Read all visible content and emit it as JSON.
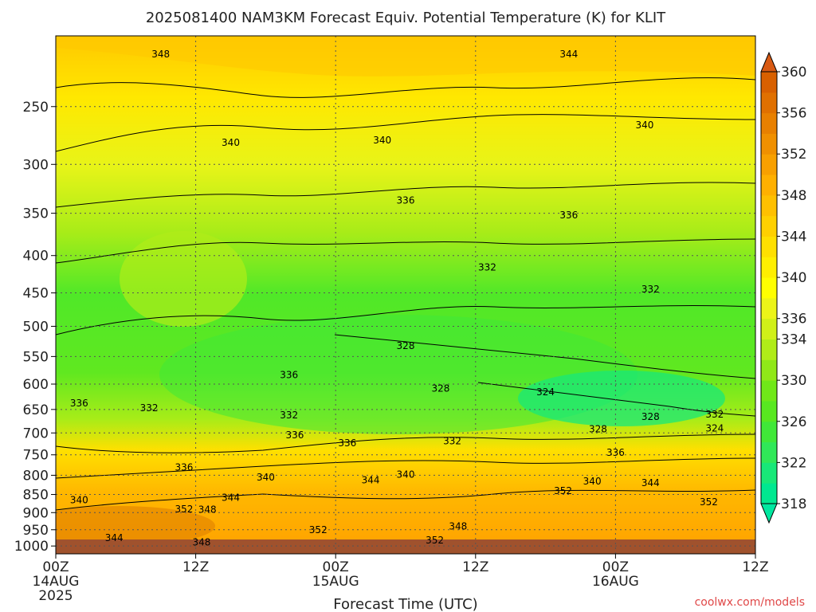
{
  "chart_data": {
    "type": "heatmap",
    "title": "2025081400 NAM3KM Forecast Equiv. Potential Temperature (K) for KLIT",
    "xlabel": "Forecast Time (UTC)",
    "ylabel": "",
    "y_axis": {
      "scale": "log",
      "inverted": true,
      "ylim": [
        1025,
        200
      ],
      "ticks": [
        250,
        300,
        350,
        400,
        450,
        500,
        550,
        600,
        650,
        700,
        750,
        800,
        850,
        900,
        950,
        1000
      ]
    },
    "x_axis": {
      "xlim_hours": [
        0,
        60
      ],
      "ticks": [
        {
          "hour": 0,
          "line1": "00Z",
          "line2": "14AUG",
          "line3": "2025"
        },
        {
          "hour": 12,
          "line1": "12Z",
          "line2": "",
          "line3": ""
        },
        {
          "hour": 24,
          "line1": "00Z",
          "line2": "15AUG",
          "line3": ""
        },
        {
          "hour": 36,
          "line1": "12Z",
          "line2": "",
          "line3": ""
        },
        {
          "hour": 48,
          "line1": "00Z",
          "line2": "16AUG",
          "line3": ""
        },
        {
          "hour": 60,
          "line1": "12Z",
          "line2": "",
          "line3": ""
        }
      ]
    },
    "grid": true,
    "colorbar": {
      "placement": "right",
      "levels": [
        318,
        320,
        322,
        324,
        326,
        328,
        330,
        332,
        334,
        336,
        338,
        340,
        342,
        344,
        346,
        348,
        350,
        352,
        354,
        356,
        358,
        360
      ],
      "labels": [
        318,
        322,
        326,
        330,
        334,
        336,
        340,
        344,
        348,
        352,
        356,
        360
      ],
      "colors": [
        "#00e890",
        "#18e878",
        "#30e858",
        "#40e838",
        "#58e820",
        "#70e818",
        "#90e818",
        "#b0ec18",
        "#d0f018",
        "#ecf418",
        "#ffff00",
        "#ffef00",
        "#ffe000",
        "#ffd000",
        "#ffc000",
        "#ffb000",
        "#f8a000",
        "#f09000",
        "#e88000",
        "#e07000",
        "#d86000"
      ]
    },
    "contour_labels": [
      {
        "text": "348",
        "hour": 9.0,
        "p": 212
      },
      {
        "text": "344",
        "hour": 44.0,
        "p": 212
      },
      {
        "text": "340",
        "hour": 15.0,
        "p": 280
      },
      {
        "text": "340",
        "hour": 28.0,
        "p": 278
      },
      {
        "text": "340",
        "hour": 50.5,
        "p": 265
      },
      {
        "text": "336",
        "hour": 30.0,
        "p": 336
      },
      {
        "text": "336",
        "hour": 44.0,
        "p": 352
      },
      {
        "text": "332",
        "hour": 37.0,
        "p": 415
      },
      {
        "text": "332",
        "hour": 51.0,
        "p": 445
      },
      {
        "text": "328",
        "hour": 30.0,
        "p": 532
      },
      {
        "text": "328",
        "hour": 33.0,
        "p": 608
      },
      {
        "text": "324",
        "hour": 42.0,
        "p": 615
      },
      {
        "text": "336",
        "hour": 20.0,
        "p": 583
      },
      {
        "text": "336",
        "hour": 2.0,
        "p": 637
      },
      {
        "text": "332",
        "hour": 8.0,
        "p": 647
      },
      {
        "text": "332",
        "hour": 20.0,
        "p": 662
      },
      {
        "text": "336",
        "hour": 20.5,
        "p": 705
      },
      {
        "text": "336",
        "hour": 25.0,
        "p": 723
      },
      {
        "text": "332",
        "hour": 34.0,
        "p": 718
      },
      {
        "text": "328",
        "hour": 46.5,
        "p": 692
      },
      {
        "text": "328",
        "hour": 51.0,
        "p": 665
      },
      {
        "text": "332",
        "hour": 56.5,
        "p": 660
      },
      {
        "text": "324",
        "hour": 56.5,
        "p": 690
      },
      {
        "text": "336",
        "hour": 48.0,
        "p": 745
      },
      {
        "text": "336",
        "hour": 11.0,
        "p": 780
      },
      {
        "text": "340",
        "hour": 18.0,
        "p": 805
      },
      {
        "text": "344",
        "hour": 27.0,
        "p": 812
      },
      {
        "text": "340",
        "hour": 30.0,
        "p": 798
      },
      {
        "text": "340",
        "hour": 46.0,
        "p": 815
      },
      {
        "text": "344",
        "hour": 51.0,
        "p": 820
      },
      {
        "text": "352",
        "hour": 43.5,
        "p": 840
      },
      {
        "text": "340",
        "hour": 2.0,
        "p": 865
      },
      {
        "text": "344",
        "hour": 15.0,
        "p": 858
      },
      {
        "text": "352",
        "hour": 11.0,
        "p": 890
      },
      {
        "text": "348",
        "hour": 13.0,
        "p": 892
      },
      {
        "text": "352",
        "hour": 56.0,
        "p": 870
      },
      {
        "text": "348",
        "hour": 34.5,
        "p": 940
      },
      {
        "text": "352",
        "hour": 22.5,
        "p": 950
      },
      {
        "text": "344",
        "hour": 5.0,
        "p": 975
      },
      {
        "text": "348",
        "hour": 12.5,
        "p": 988
      },
      {
        "text": "352",
        "hour": 32.5,
        "p": 982
      }
    ]
  },
  "footer": {
    "site": "coolwx.com/models"
  }
}
